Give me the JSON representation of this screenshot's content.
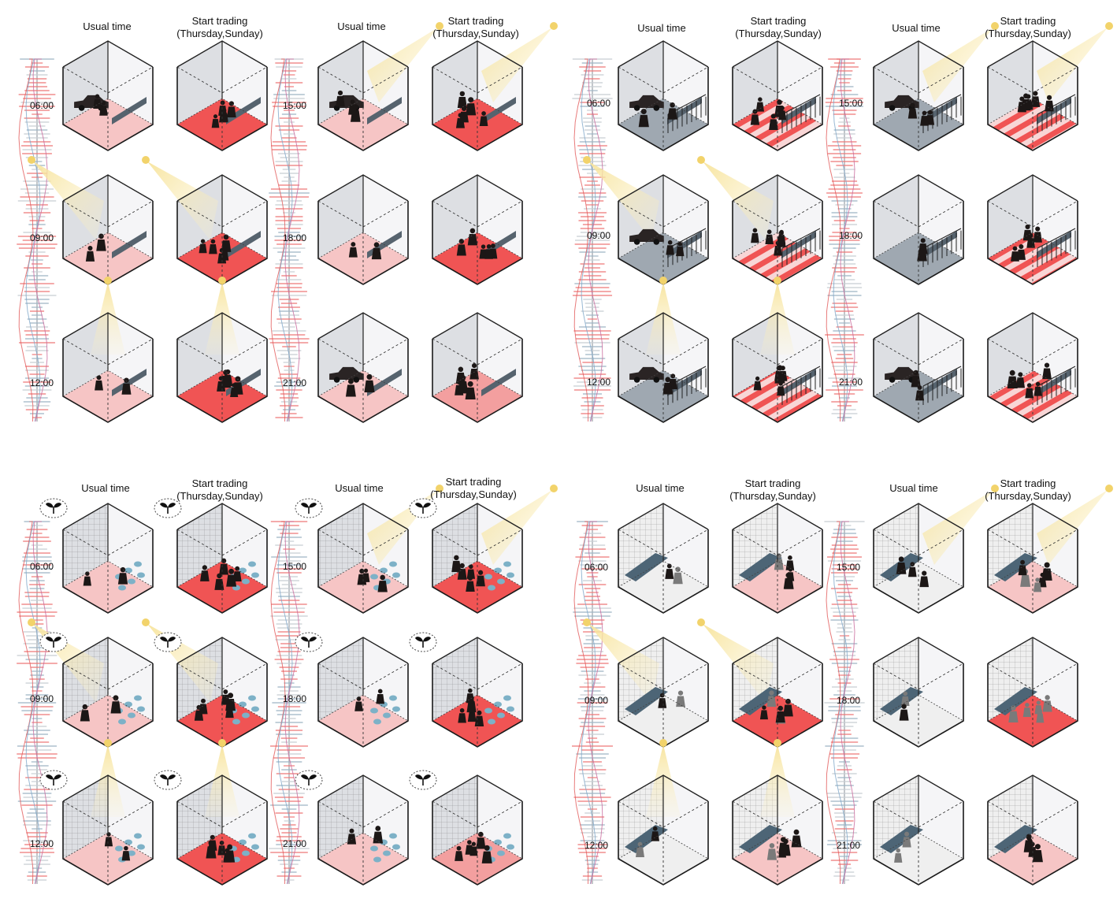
{
  "labels": {
    "usual": "Usual time",
    "trading_line1": "Start trading",
    "trading_line2": "(Thursday,Sunday)"
  },
  "times": {
    "left": [
      "06:00",
      "09:00",
      "12:00"
    ],
    "right": [
      "15:00",
      "18:00",
      "21:00"
    ]
  },
  "panels": [
    {
      "id": "panel-1",
      "type": "lane"
    },
    {
      "id": "panel-2",
      "type": "railing"
    },
    {
      "id": "panel-3",
      "type": "garden"
    },
    {
      "id": "panel-4",
      "type": "bench"
    }
  ],
  "colors": {
    "pink_light": "#f6c2c2",
    "pink": "#f29a9a",
    "red": "#ef4b4b",
    "glass": "#d9dbe0",
    "glass_light": "#ececf0",
    "light": "#f7e7a6",
    "ink": "#1c1716",
    "slate": "#56636e"
  }
}
